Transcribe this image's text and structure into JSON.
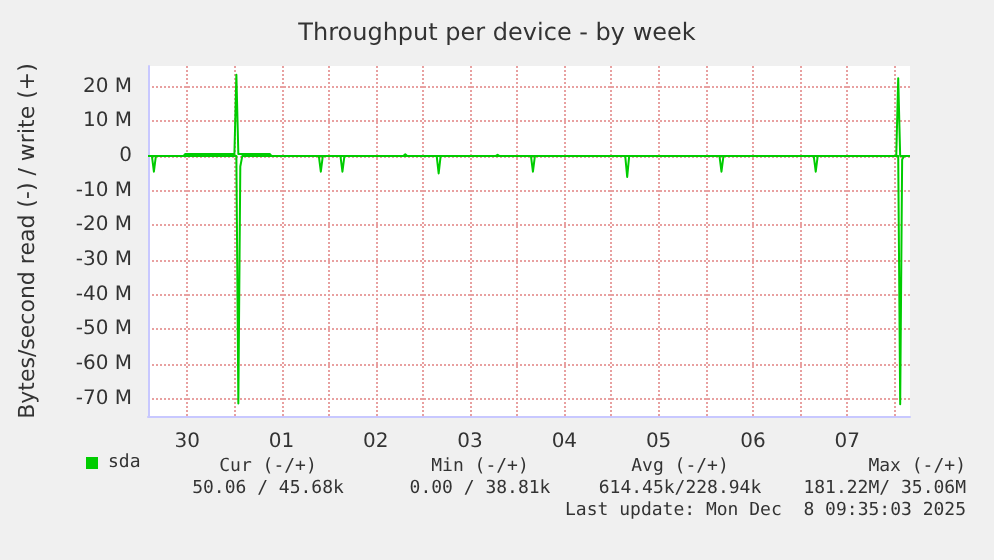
{
  "chart_data": {
    "type": "line",
    "title": "Throughput per device - by week",
    "ylabel": "Bytes/second read (-) / write (+)",
    "xlim": [
      "2025-11-30T02:00",
      "2025-12-08T04:00"
    ],
    "xticks": [
      {
        "value": "2025-11-30T12:00",
        "label": "30"
      },
      {
        "value": "2025-12-01T00:00",
        "label": null
      },
      {
        "value": "2025-12-01T12:00",
        "label": "01"
      },
      {
        "value": "2025-12-02T00:00",
        "label": null
      },
      {
        "value": "2025-12-02T12:00",
        "label": "02"
      },
      {
        "value": "2025-12-03T00:00",
        "label": null
      },
      {
        "value": "2025-12-03T12:00",
        "label": "03"
      },
      {
        "value": "2025-12-04T00:00",
        "label": null
      },
      {
        "value": "2025-12-04T12:00",
        "label": "04"
      },
      {
        "value": "2025-12-05T00:00",
        "label": null
      },
      {
        "value": "2025-12-05T12:00",
        "label": "05"
      },
      {
        "value": "2025-12-06T00:00",
        "label": null
      },
      {
        "value": "2025-12-06T12:00",
        "label": "06"
      },
      {
        "value": "2025-12-07T00:00",
        "label": null
      },
      {
        "value": "2025-12-07T12:00",
        "label": "07"
      },
      {
        "value": "2025-12-08T00:00",
        "label": null
      }
    ],
    "ylim": [
      -75,
      26
    ],
    "yticks": [
      {
        "value": -70,
        "label": "-70 M"
      },
      {
        "value": -60,
        "label": "-60 M"
      },
      {
        "value": -50,
        "label": "-50 M"
      },
      {
        "value": -40,
        "label": "-40 M"
      },
      {
        "value": -30,
        "label": "-30 M"
      },
      {
        "value": -20,
        "label": "-20 M"
      },
      {
        "value": -10,
        "label": "-10 M"
      },
      0,
      {
        "value": 10,
        "label": "10 M"
      },
      {
        "value": 20,
        "label": "20 M"
      }
    ],
    "grid": true,
    "legend": "bottom left",
    "marker": "none",
    "series": [
      {
        "name": "sda",
        "color": "#00cc00",
        "x": [
          "2025-11-30T02:00",
          "2025-11-30T11:00",
          "2025-11-30T11:30",
          "2025-12-01T00:00",
          "2025-12-01T00:30",
          "2025-12-01T01:00",
          "2025-12-01T09:00",
          "2025-12-01T09:30",
          "2025-12-02T19:00",
          "2025-12-02T19:30",
          "2025-12-02T20:00",
          "2025-12-03T18:30",
          "2025-12-03T19:00",
          "2025-12-03T19:30",
          "2025-12-08T00:30",
          "2025-12-08T01:00",
          "2025-12-08T01:30",
          "2025-12-08T04:00"
        ],
        "values": [
          0,
          0,
          0.6,
          0.6,
          23.5,
          0.6,
          0.6,
          0,
          0,
          0.5,
          0,
          0,
          0.4,
          0,
          0,
          22.5,
          0,
          0
        ]
      },
      {
        "color": "#00cc00",
        "x": [
          "2025-11-30T02:00",
          "2025-11-30T03:00",
          "2025-11-30T03:30",
          "2025-11-30T04:00",
          "2025-12-01T00:30",
          "2025-12-01T01:00",
          "2025-12-01T01:30",
          "2025-12-01T02:00",
          "2025-12-01T21:30",
          "2025-12-01T22:00",
          "2025-12-01T22:30",
          "2025-12-02T03:00",
          "2025-12-02T03:30",
          "2025-12-02T04:00",
          "2025-12-03T03:30",
          "2025-12-03T04:00",
          "2025-12-03T04:30",
          "2025-12-04T03:30",
          "2025-12-04T04:00",
          "2025-12-04T04:30",
          "2025-12-05T03:30",
          "2025-12-05T04:00",
          "2025-12-05T04:30",
          "2025-12-06T03:30",
          "2025-12-06T04:00",
          "2025-12-06T04:30",
          "2025-12-07T03:30",
          "2025-12-07T04:00",
          "2025-12-07T04:30",
          "2025-12-08T01:00",
          "2025-12-08T01:30",
          "2025-12-08T02:00",
          "2025-12-08T02:30",
          "2025-12-08T04:00"
        ],
        "values": [
          0,
          0,
          -4.5,
          0,
          0,
          -71.4,
          -3,
          0,
          0,
          -4.5,
          0,
          0,
          -4.5,
          0,
          0,
          -5,
          0,
          0,
          -4.5,
          0,
          0,
          -6,
          0,
          0,
          -4.5,
          0,
          0,
          -4.5,
          0,
          0,
          -71.6,
          -1,
          0,
          0
        ]
      }
    ],
    "annotations": [
      "Cur (-/+)",
      "Min (-/+)",
      "Avg (-/+)",
      "Max (-/+)",
      "50.06 / 45.68k",
      "0.00 / 38.81k",
      "614.45k/228.94k",
      "181.22M/ 35.06M",
      "Last update: Mon Dec  8 09:35:03 2025"
    ]
  }
}
